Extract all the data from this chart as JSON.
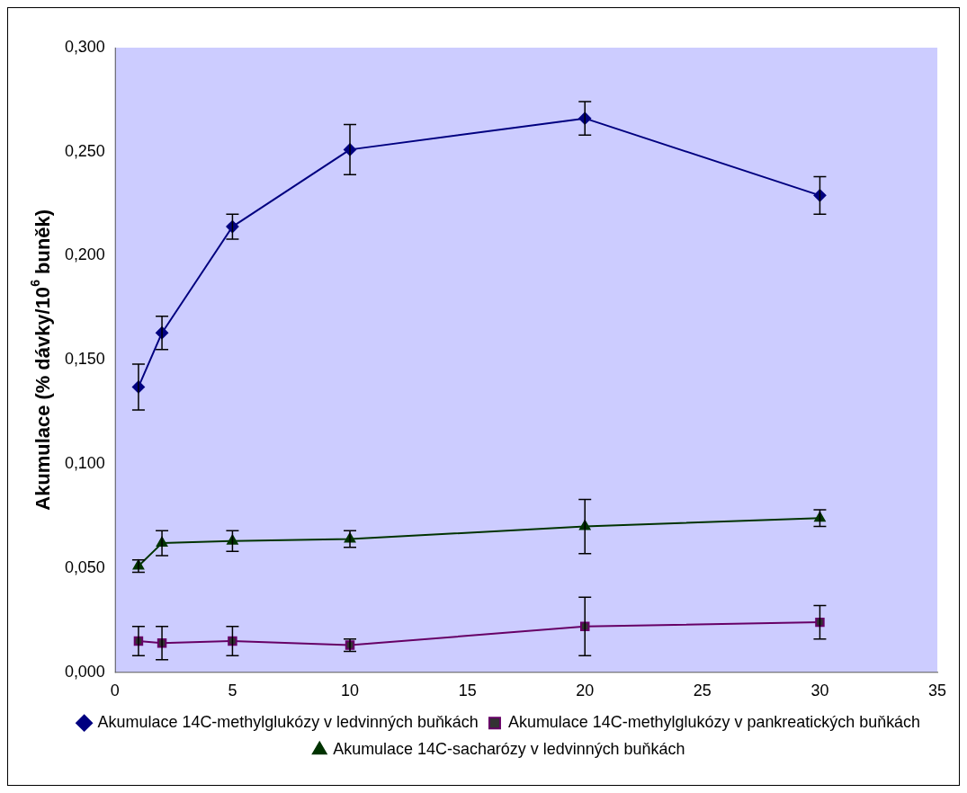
{
  "chart_data": {
    "type": "line",
    "ylabel": "Akumulace (% dávky/10$^{6}$ buněk)",
    "x": [
      1,
      2,
      5,
      10,
      20,
      30
    ],
    "xlim": [
      0,
      35
    ],
    "xticks": [
      0,
      5,
      10,
      15,
      20,
      25,
      30,
      35
    ],
    "ylim": [
      0,
      0.3
    ],
    "yticks": [
      {
        "value": 0,
        "label": "0,000"
      },
      {
        "value": 0.05,
        "label": "0,050"
      },
      {
        "value": 0.1,
        "label": "0,100"
      },
      {
        "value": 0.15,
        "label": "0,150"
      },
      {
        "value": 0.2,
        "label": "0,200"
      },
      {
        "value": 0.25,
        "label": "0,250"
      },
      {
        "value": 0.3,
        "label": "0,300"
      }
    ],
    "grid": false,
    "legend": "bottom",
    "line_style": "solid",
    "series": [
      {
        "name": "Akumulace 14C-methylglukózy v ledvinných buňkách",
        "color": "#000080",
        "marker": "diamond",
        "values": [
          0.137,
          0.163,
          0.214,
          0.251,
          0.266,
          0.229
        ],
        "errors": [
          0.011,
          0.008,
          0.006,
          0.012,
          0.008,
          0.009
        ]
      },
      {
        "name": "Akumulace 14C-methylglukózy v pankreatických buňkách",
        "color": "#660066",
        "marker": "square",
        "values": [
          0.015,
          0.014,
          0.015,
          0.013,
          0.022,
          0.024
        ],
        "errors": [
          0.007,
          0.008,
          0.007,
          0.003,
          0.014,
          0.008
        ]
      },
      {
        "name": "Akumulace 14C-sacharózy v ledvinných buňkách",
        "color": "#003300",
        "marker": "triangle",
        "values": [
          0.051,
          0.062,
          0.063,
          0.064,
          0.07,
          0.074
        ],
        "errors": [
          0.003,
          0.006,
          0.005,
          0.004,
          0.013,
          0.004
        ]
      }
    ]
  }
}
